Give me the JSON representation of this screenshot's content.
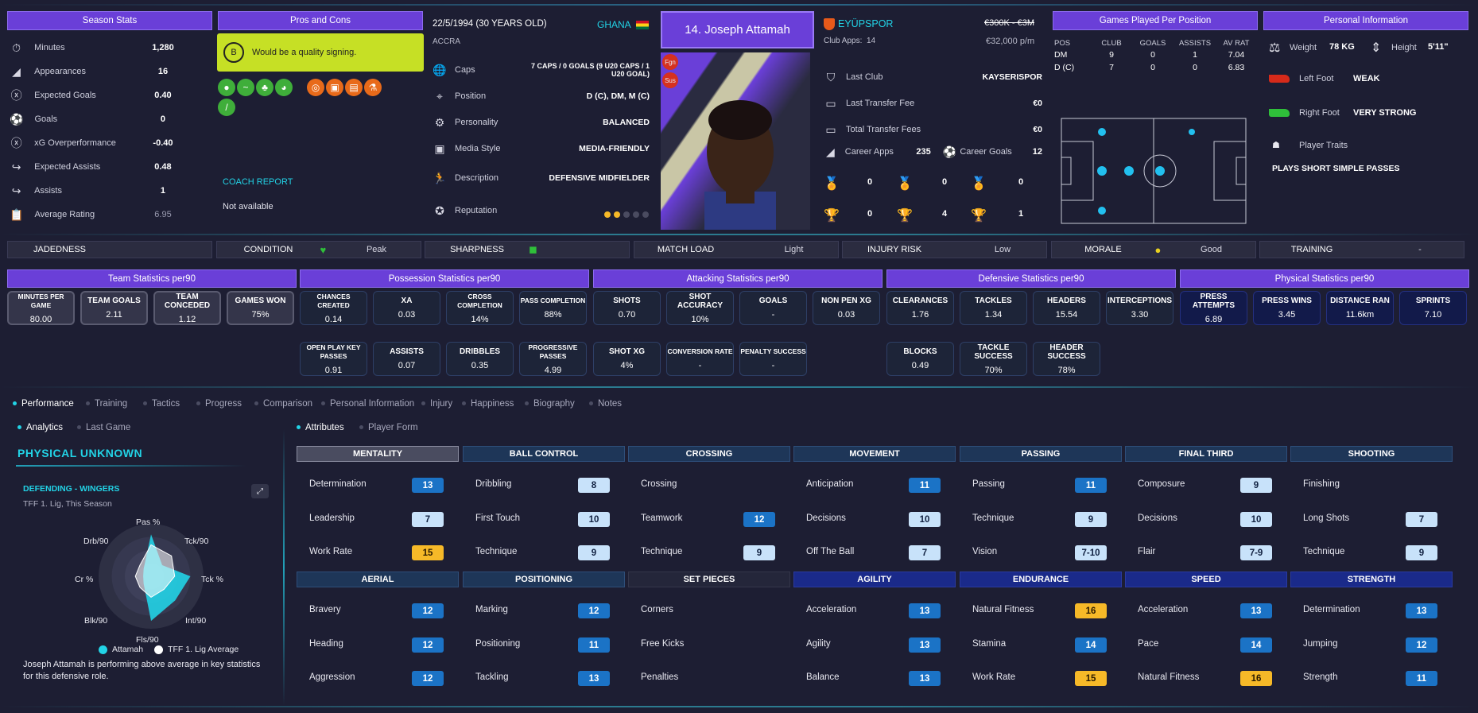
{
  "season_stats": {
    "title": "Season Stats",
    "rows": [
      {
        "icon": "stopwatch-icon",
        "label": "Minutes",
        "value": "1,280"
      },
      {
        "icon": "boot-icon",
        "label": "Appearances",
        "value": "16"
      },
      {
        "icon": "xg-icon",
        "label": "Expected Goals",
        "value": "0.40"
      },
      {
        "icon": "ball-icon",
        "label": "Goals",
        "value": "0"
      },
      {
        "icon": "xg-icon",
        "label": "xG Overperformance",
        "value": "-0.40"
      },
      {
        "icon": "assist-icon",
        "label": "Expected Assists",
        "value": "0.48"
      },
      {
        "icon": "assist-icon",
        "label": "Assists",
        "value": "1"
      },
      {
        "icon": "clipboard-icon",
        "label": "Average Rating",
        "value": "6.95"
      }
    ]
  },
  "pros_cons": {
    "title": "Pros and Cons",
    "grade": "B",
    "summary": "Would be a quality signing.",
    "coach_report_title": "COACH REPORT",
    "coach_report_text": "Not available"
  },
  "profile": {
    "dob": "22/5/1994 (30 YEARS OLD)",
    "city": "ACCRA",
    "nation": "GHANA",
    "rows": [
      {
        "icon": "globe-icon",
        "label": "Caps",
        "value": "7 CAPS / 0 GOALS (9 U20 CAPS / 1 U20 GOAL)"
      },
      {
        "icon": "pin-icon",
        "label": "Position",
        "value": "D (C), DM, M (C)"
      },
      {
        "icon": "gears-icon",
        "label": "Personality",
        "value": "BALANCED"
      },
      {
        "icon": "media-icon",
        "label": "Media Style",
        "value": "MEDIA-FRIENDLY"
      },
      {
        "icon": "runner-icon",
        "label": "Description",
        "value": "DEFENSIVE MIDFIELDER"
      },
      {
        "icon": "rosette-icon",
        "label": "Reputation",
        "value": ""
      }
    ],
    "reputation_stars": 2,
    "reputation_max": 5
  },
  "player": {
    "number_name": "14. Joseph Attamah",
    "badges": [
      "Fgn",
      "Sus"
    ]
  },
  "club": {
    "name": "EYÜPSPOR",
    "apps_label": "Club Apps:",
    "apps": "14",
    "old_value": "€300K - €3M",
    "wage": "€32,000 p/m",
    "rows": [
      {
        "icon": "shield-icon",
        "label": "Last Club",
        "value": "KAYSERISPOR"
      },
      {
        "icon": "money-icon",
        "label": "Last Transfer Fee",
        "value": "€0"
      },
      {
        "icon": "money-icon",
        "label": "Total Transfer Fees",
        "value": "€0"
      }
    ],
    "career_apps_label": "Career Apps",
    "career_apps": "235",
    "career_goals_label": "Career Goals",
    "career_goals": "12",
    "medals": [
      "0",
      "0",
      "0"
    ],
    "trophies": [
      "0",
      "4",
      "1"
    ]
  },
  "games_per_position": {
    "title": "Games Played Per Position",
    "headers": [
      "POS",
      "CLUB",
      "GOALS",
      "ASSISTS",
      "AV RAT"
    ],
    "rows": [
      [
        "DM",
        "9",
        "0",
        "1",
        "7.04"
      ],
      [
        "D (C)",
        "7",
        "0",
        "0",
        "6.83"
      ]
    ]
  },
  "personal": {
    "title": "Personal Information",
    "weight_label": "Weight",
    "weight": "78 KG",
    "height_label": "Height",
    "height": "5'11\"",
    "left_foot_label": "Left Foot",
    "left_foot": "WEAK",
    "right_foot_label": "Right Foot",
    "right_foot": "VERY STRONG",
    "traits_label": "Player Traits",
    "trait": "PLAYS SHORT SIMPLE PASSES"
  },
  "status_bar": [
    {
      "label": "JADEDNESS",
      "value": ""
    },
    {
      "label": "CONDITION",
      "value": "Peak"
    },
    {
      "label": "SHARPNESS",
      "value": ""
    },
    {
      "label": "MATCH LOAD",
      "value": "Light"
    },
    {
      "label": "INJURY RISK",
      "value": "Low"
    },
    {
      "label": "MORALE",
      "value": "Good"
    },
    {
      "label": "TRAINING",
      "value": "-"
    }
  ],
  "stat_groups": [
    {
      "title": "Team Statistics per90",
      "items": [
        [
          "MINUTES PER GAME",
          "80.00"
        ],
        [
          "TEAM GOALS",
          "2.11"
        ],
        [
          "TEAM CONCEDED",
          "1.12"
        ],
        [
          "GAMES WON",
          "75%"
        ]
      ]
    },
    {
      "title": "Possession Statistics per90",
      "items": [
        [
          "CHANCES CREATED",
          "0.14"
        ],
        [
          "XA",
          "0.03"
        ],
        [
          "CROSS COMPLETION",
          "14%"
        ],
        [
          "PASS COMPLETION",
          "88%"
        ],
        [
          "OPEN PLAY KEY PASSES",
          "0.91"
        ],
        [
          "ASSISTS",
          "0.07"
        ],
        [
          "DRIBBLES",
          "0.35"
        ],
        [
          "PROGRESSIVE PASSES",
          "4.99"
        ]
      ]
    },
    {
      "title": "Attacking Statistics per90",
      "items": [
        [
          "SHOTS",
          "0.70"
        ],
        [
          "SHOT ACCURACY",
          "10%"
        ],
        [
          "GOALS",
          "-"
        ],
        [
          "NON PEN XG",
          "0.03"
        ],
        [
          "SHOT XG",
          "4%"
        ],
        [
          "CONVERSION RATE",
          "-"
        ],
        [
          "PENALTY SUCCESS",
          "-"
        ]
      ]
    },
    {
      "title": "Defensive Statistics per90",
      "items": [
        [
          "CLEARANCES",
          "1.76"
        ],
        [
          "TACKLES",
          "1.34"
        ],
        [
          "HEADERS",
          "15.54"
        ],
        [
          "INTERCEPTIONS",
          "3.30"
        ],
        [
          "BLOCKS",
          "0.49"
        ],
        [
          "TACKLE SUCCESS",
          "70%"
        ],
        [
          "HEADER SUCCESS",
          "78%"
        ]
      ]
    },
    {
      "title": "Physical Statistics per90",
      "items": [
        [
          "PRESS ATTEMPTS",
          "6.89"
        ],
        [
          "PRESS WINS",
          "3.45"
        ],
        [
          "DISTANCE RAN",
          "11.6km"
        ],
        [
          "SPRINTS",
          "7.10"
        ]
      ]
    }
  ],
  "tabs": [
    "Performance",
    "Training",
    "Tactics",
    "Progress",
    "Comparison",
    "Personal Information",
    "Injury",
    "Happiness",
    "Biography",
    "Notes"
  ],
  "subtabs": [
    "Analytics",
    "Last Game"
  ],
  "attr_tabs": [
    "Attributes",
    "Player Form"
  ],
  "analytics": {
    "title": "PHYSICAL UNKNOWN",
    "role": "DEFENDING - WINGERS",
    "league": "TFF 1. Lig, This Season",
    "axes": [
      "Pas %",
      "Tck/90",
      "Tck %",
      "Int/90",
      "Fls/90",
      "Blk/90",
      "Cr %",
      "Drb/90"
    ],
    "player_values": [
      0.8,
      0.3,
      0.75,
      0.65,
      0.85,
      0.2,
      0.15,
      0.2
    ],
    "avg_values": [
      0.6,
      0.55,
      0.45,
      0.35,
      0.4,
      0.3,
      0.3,
      0.3
    ],
    "legend_player": "Attamah",
    "legend_avg": "TFF 1. Lig Average",
    "note": "Joseph Attamah is performing above average in key statistics for this defensive role."
  },
  "attributes": {
    "row1": [
      {
        "title": "MENTALITY",
        "style": "ah2",
        "items": [
          [
            "Determination",
            "13",
            "cb"
          ],
          [
            "Leadership",
            "7",
            "cl"
          ],
          [
            "Work Rate",
            "15",
            "cy"
          ]
        ]
      },
      {
        "title": "BALL CONTROL",
        "style": "ah1",
        "items": [
          [
            "Dribbling",
            "8",
            "cl"
          ],
          [
            "First Touch",
            "10",
            "cl"
          ],
          [
            "Technique",
            "9",
            "cl"
          ]
        ]
      },
      {
        "title": "CROSSING",
        "style": "ah1",
        "items": [
          [
            "Crossing",
            "",
            ""
          ],
          [
            "Teamwork",
            "12",
            "cb"
          ],
          [
            "Technique",
            "9",
            "cl"
          ]
        ]
      },
      {
        "title": "MOVEMENT",
        "style": "ah1",
        "items": [
          [
            "Anticipation",
            "11",
            "cb"
          ],
          [
            "Decisions",
            "10",
            "cl"
          ],
          [
            "Off The Ball",
            "7",
            "cl"
          ]
        ]
      },
      {
        "title": "PASSING",
        "style": "ah1",
        "items": [
          [
            "Passing",
            "11",
            "cb"
          ],
          [
            "Technique",
            "9",
            "cl"
          ],
          [
            "Vision",
            "7-10",
            "cl"
          ]
        ]
      },
      {
        "title": "FINAL THIRD",
        "style": "ah1",
        "items": [
          [
            "Composure",
            "9",
            "cl"
          ],
          [
            "Decisions",
            "10",
            "cl"
          ],
          [
            "Flair",
            "7-9",
            "cl"
          ]
        ]
      },
      {
        "title": "SHOOTING",
        "style": "ah1",
        "items": [
          [
            "Finishing",
            "",
            ""
          ],
          [
            "Long Shots",
            "7",
            "cl"
          ],
          [
            "Technique",
            "9",
            "cl"
          ]
        ]
      }
    ],
    "row2": [
      {
        "title": "AERIAL",
        "style": "ah1",
        "items": [
          [
            "Bravery",
            "12",
            "cb"
          ],
          [
            "Heading",
            "12",
            "cb"
          ],
          [
            "Aggression",
            "12",
            "cb"
          ]
        ]
      },
      {
        "title": "POSITIONING",
        "style": "ah1",
        "items": [
          [
            "Marking",
            "12",
            "cb"
          ],
          [
            "Positioning",
            "11",
            "cb"
          ],
          [
            "Tackling",
            "13",
            "cb"
          ]
        ]
      },
      {
        "title": "SET PIECES",
        "style": "ah4",
        "items": [
          [
            "Corners",
            "",
            ""
          ],
          [
            "Free Kicks",
            "",
            ""
          ],
          [
            "Penalties",
            "",
            ""
          ]
        ]
      },
      {
        "title": "AGILITY",
        "style": "ah3",
        "items": [
          [
            "Acceleration",
            "13",
            "cb"
          ],
          [
            "Agility",
            "13",
            "cb"
          ],
          [
            "Balance",
            "13",
            "cb"
          ]
        ]
      },
      {
        "title": "ENDURANCE",
        "style": "ah3",
        "items": [
          [
            "Natural Fitness",
            "16",
            "cy"
          ],
          [
            "Stamina",
            "14",
            "cb"
          ],
          [
            "Work Rate",
            "15",
            "cy"
          ]
        ]
      },
      {
        "title": "SPEED",
        "style": "ah3",
        "items": [
          [
            "Acceleration",
            "13",
            "cb"
          ],
          [
            "Pace",
            "14",
            "cb"
          ],
          [
            "Natural Fitness",
            "16",
            "cy"
          ]
        ]
      },
      {
        "title": "STRENGTH",
        "style": "ah3",
        "items": [
          [
            "Determination",
            "13",
            "cb"
          ],
          [
            "Jumping",
            "12",
            "cb"
          ],
          [
            "Strength",
            "11",
            "cb"
          ]
        ]
      }
    ]
  }
}
